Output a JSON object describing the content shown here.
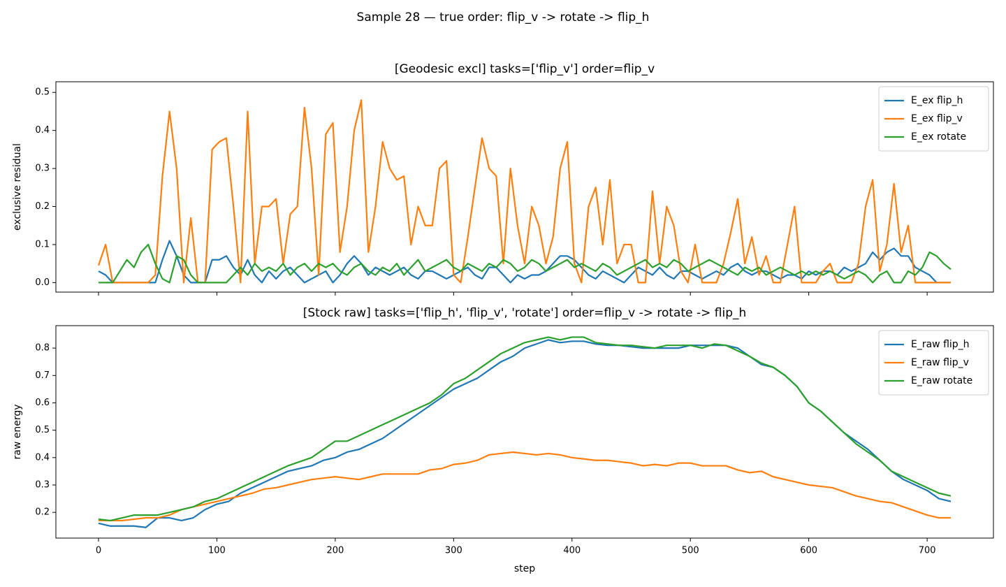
{
  "title": "Sample 28 — true order: flip_v -> rotate -> flip_h",
  "chart_data": [
    {
      "type": "line",
      "title": "[Geodesic excl] tasks=['flip_v'] order=flip_v",
      "ylabel": "exclusive residual",
      "xlim": [
        -36,
        756
      ],
      "ylim": [
        -0.025,
        0.528
      ],
      "xticks": [
        0,
        100,
        200,
        300,
        400,
        500,
        600,
        700
      ],
      "show_xtick_labels": false,
      "yticks": [
        {
          "value": 0,
          "label": "0.0"
        },
        0.1,
        0.2,
        0.3,
        0.4,
        0.5
      ],
      "legend": "upper-right",
      "x": [
        0,
        6,
        12,
        18,
        24,
        30,
        36,
        42,
        48,
        54,
        60,
        66,
        72,
        78,
        84,
        90,
        96,
        102,
        108,
        114,
        120,
        126,
        132,
        138,
        144,
        150,
        156,
        162,
        168,
        174,
        180,
        186,
        192,
        198,
        204,
        210,
        216,
        222,
        228,
        234,
        240,
        246,
        252,
        258,
        264,
        270,
        276,
        282,
        288,
        294,
        300,
        306,
        312,
        318,
        324,
        330,
        336,
        342,
        348,
        354,
        360,
        366,
        372,
        378,
        384,
        390,
        396,
        402,
        408,
        414,
        420,
        426,
        432,
        438,
        444,
        450,
        456,
        462,
        468,
        474,
        480,
        486,
        492,
        498,
        504,
        510,
        516,
        522,
        528,
        534,
        540,
        546,
        552,
        558,
        564,
        570,
        576,
        582,
        588,
        594,
        600,
        606,
        612,
        618,
        624,
        630,
        636,
        642,
        648,
        654,
        660,
        666,
        672,
        678,
        684,
        690,
        696,
        702,
        708,
        714,
        720
      ],
      "series": [
        {
          "name": "E_ex flip_h",
          "color": "#1f77b4",
          "values": [
            0.03,
            0.02,
            0,
            0,
            0,
            0,
            0,
            0,
            0,
            0.06,
            0.11,
            0.07,
            0.02,
            0,
            0,
            0,
            0.06,
            0.06,
            0.07,
            0.04,
            0.02,
            0.06,
            0.02,
            0,
            0.03,
            0.01,
            0.03,
            0.04,
            0.02,
            0,
            0.01,
            0.02,
            0.03,
            0,
            0.02,
            0.05,
            0.07,
            0.05,
            0.02,
            0.04,
            0.03,
            0.02,
            0.03,
            0.04,
            0.02,
            0.01,
            0.03,
            0.03,
            0.02,
            0.01,
            0.02,
            0.03,
            0.04,
            0.02,
            0.01,
            0.04,
            0.04,
            0.02,
            0,
            0.02,
            0.01,
            0.02,
            0.02,
            0.03,
            0.05,
            0.07,
            0.07,
            0.06,
            0.04,
            0.02,
            0.01,
            0.03,
            0.02,
            0.01,
            0,
            0.02,
            0.04,
            0.03,
            0.02,
            0.04,
            0.02,
            0.01,
            0.03,
            0.03,
            0.02,
            0.01,
            0.02,
            0.03,
            0.02,
            0.04,
            0.05,
            0.03,
            0.02,
            0.03,
            0.03,
            0.02,
            0.01,
            0.02,
            0.02,
            0.01,
            0.03,
            0.02,
            0.03,
            0.03,
            0.02,
            0.04,
            0.03,
            0.04,
            0.05,
            0.08,
            0.06,
            0.08,
            0.09,
            0.07,
            0.07,
            0.04,
            0.03,
            0.02,
            0,
            0,
            0
          ]
        },
        {
          "name": "E_ex flip_v",
          "color": "#ff7f0e",
          "values": [
            0.045,
            0.1,
            0,
            0,
            0,
            0,
            0,
            0,
            0.02,
            0.28,
            0.45,
            0.3,
            0,
            0.17,
            0,
            0,
            0.35,
            0.37,
            0.38,
            0.2,
            0,
            0.45,
            0.05,
            0.2,
            0.2,
            0.22,
            0.05,
            0.18,
            0.2,
            0.46,
            0.3,
            0.02,
            0.39,
            0.42,
            0.08,
            0.2,
            0.4,
            0.48,
            0.08,
            0.2,
            0.37,
            0.3,
            0.27,
            0.28,
            0.1,
            0.2,
            0.15,
            0.15,
            0.3,
            0.32,
            0.02,
            0,
            0.12,
            0.25,
            0.38,
            0.3,
            0.28,
            0.05,
            0.3,
            0.15,
            0.05,
            0.2,
            0.15,
            0.05,
            0.12,
            0.3,
            0.37,
            0.05,
            0,
            0.2,
            0.25,
            0.1,
            0.27,
            0.05,
            0.1,
            0.1,
            0,
            0,
            0.24,
            0.05,
            0.2,
            0.15,
            0.03,
            0,
            0.1,
            0,
            0,
            0,
            0.05,
            0.13,
            0.22,
            0.05,
            0.12,
            0.02,
            0.07,
            0,
            0,
            0.1,
            0.2,
            0,
            0,
            0,
            0.03,
            0.05,
            0,
            0,
            0,
            0.05,
            0.2,
            0.27,
            0.03,
            0.1,
            0.26,
            0.08,
            0.15,
            0,
            0,
            0,
            0,
            0,
            0
          ]
        },
        {
          "name": "E_ex rotate",
          "color": "#2ca02c",
          "values": [
            0,
            0,
            0,
            0.03,
            0.06,
            0.04,
            0.08,
            0.1,
            0.05,
            0.01,
            0,
            0.07,
            0.06,
            0.02,
            0,
            0,
            0,
            0,
            0,
            0.02,
            0.04,
            0.02,
            0.05,
            0.03,
            0.04,
            0.03,
            0.05,
            0.02,
            0.04,
            0.05,
            0.03,
            0.05,
            0.04,
            0.05,
            0.03,
            0.02,
            0.04,
            0.05,
            0.03,
            0.02,
            0.04,
            0.03,
            0.05,
            0.02,
            0.04,
            0.06,
            0.03,
            0.04,
            0.05,
            0.06,
            0.04,
            0.03,
            0.05,
            0.04,
            0.03,
            0.05,
            0.04,
            0.06,
            0.05,
            0.03,
            0.04,
            0.06,
            0.05,
            0.03,
            0.04,
            0.05,
            0.06,
            0.04,
            0.05,
            0.04,
            0.03,
            0.05,
            0.04,
            0.02,
            0.03,
            0.04,
            0.05,
            0.06,
            0.04,
            0.05,
            0.04,
            0.06,
            0.05,
            0.03,
            0.04,
            0.05,
            0.06,
            0.05,
            0.04,
            0.03,
            0.02,
            0.04,
            0.03,
            0.04,
            0.02,
            0.03,
            0.04,
            0.03,
            0.02,
            0.03,
            0.02,
            0.03,
            0.02,
            0.03,
            0.02,
            0.01,
            0.02,
            0.03,
            0.02,
            0,
            0.02,
            0.03,
            0,
            0,
            0.03,
            0.02,
            0.04,
            0.08,
            0.07,
            0.05,
            0.035
          ]
        }
      ]
    },
    {
      "type": "line",
      "title": "[Stock raw] tasks=['flip_h', 'flip_v', 'rotate'] order=flip_v -> rotate -> flip_h",
      "ylabel": "raw energy",
      "xlabel": "step",
      "xlim": [
        -36,
        756
      ],
      "ylim": [
        0.106,
        0.882
      ],
      "xticks": [
        0,
        100,
        200,
        300,
        400,
        500,
        600,
        700
      ],
      "show_xtick_labels": true,
      "yticks": [
        0.2,
        0.3,
        0.4,
        0.5,
        0.6,
        0.7,
        0.8
      ],
      "legend": "upper-right",
      "x": [
        0,
        10,
        20,
        30,
        40,
        50,
        60,
        70,
        80,
        90,
        100,
        110,
        120,
        130,
        140,
        150,
        160,
        170,
        180,
        190,
        200,
        210,
        220,
        230,
        240,
        250,
        260,
        270,
        280,
        290,
        300,
        310,
        320,
        330,
        340,
        350,
        360,
        370,
        380,
        390,
        400,
        410,
        420,
        430,
        440,
        450,
        460,
        470,
        480,
        490,
        500,
        510,
        520,
        530,
        540,
        550,
        560,
        570,
        580,
        590,
        600,
        610,
        620,
        630,
        640,
        650,
        660,
        670,
        680,
        690,
        700,
        710,
        720
      ],
      "series": [
        {
          "name": "E_raw flip_h",
          "color": "#1f77b4",
          "values": [
            0.16,
            0.15,
            0.15,
            0.15,
            0.145,
            0.18,
            0.18,
            0.17,
            0.18,
            0.21,
            0.23,
            0.24,
            0.27,
            0.29,
            0.31,
            0.33,
            0.35,
            0.36,
            0.37,
            0.39,
            0.4,
            0.42,
            0.43,
            0.45,
            0.47,
            0.5,
            0.53,
            0.56,
            0.59,
            0.62,
            0.65,
            0.67,
            0.69,
            0.72,
            0.75,
            0.77,
            0.8,
            0.815,
            0.83,
            0.82,
            0.825,
            0.825,
            0.815,
            0.81,
            0.81,
            0.805,
            0.8,
            0.8,
            0.8,
            0.8,
            0.81,
            0.81,
            0.81,
            0.81,
            0.8,
            0.77,
            0.74,
            0.73,
            0.7,
            0.66,
            0.6,
            0.57,
            0.53,
            0.49,
            0.46,
            0.43,
            0.39,
            0.35,
            0.32,
            0.3,
            0.28,
            0.25,
            0.24
          ]
        },
        {
          "name": "E_raw flip_v",
          "color": "#ff7f0e",
          "values": [
            0.17,
            0.17,
            0.17,
            0.175,
            0.18,
            0.18,
            0.19,
            0.21,
            0.22,
            0.23,
            0.24,
            0.25,
            0.26,
            0.27,
            0.285,
            0.29,
            0.3,
            0.31,
            0.32,
            0.325,
            0.33,
            0.325,
            0.32,
            0.33,
            0.34,
            0.34,
            0.34,
            0.34,
            0.355,
            0.36,
            0.375,
            0.38,
            0.39,
            0.41,
            0.415,
            0.42,
            0.415,
            0.41,
            0.415,
            0.41,
            0.4,
            0.395,
            0.39,
            0.39,
            0.385,
            0.38,
            0.37,
            0.375,
            0.37,
            0.38,
            0.38,
            0.37,
            0.37,
            0.37,
            0.355,
            0.345,
            0.35,
            0.33,
            0.32,
            0.31,
            0.3,
            0.295,
            0.29,
            0.275,
            0.26,
            0.25,
            0.24,
            0.235,
            0.22,
            0.205,
            0.19,
            0.18,
            0.18
          ]
        },
        {
          "name": "E_raw rotate",
          "color": "#2ca02c",
          "values": [
            0.175,
            0.17,
            0.18,
            0.19,
            0.19,
            0.19,
            0.2,
            0.21,
            0.22,
            0.24,
            0.25,
            0.27,
            0.29,
            0.31,
            0.33,
            0.35,
            0.37,
            0.385,
            0.4,
            0.43,
            0.46,
            0.46,
            0.48,
            0.5,
            0.52,
            0.54,
            0.56,
            0.58,
            0.6,
            0.63,
            0.67,
            0.69,
            0.72,
            0.75,
            0.78,
            0.8,
            0.82,
            0.83,
            0.84,
            0.83,
            0.84,
            0.84,
            0.82,
            0.815,
            0.81,
            0.81,
            0.805,
            0.8,
            0.81,
            0.81,
            0.81,
            0.8,
            0.815,
            0.81,
            0.79,
            0.77,
            0.745,
            0.73,
            0.7,
            0.66,
            0.6,
            0.57,
            0.53,
            0.49,
            0.45,
            0.42,
            0.39,
            0.35,
            0.33,
            0.31,
            0.29,
            0.27,
            0.26
          ]
        }
      ]
    }
  ]
}
